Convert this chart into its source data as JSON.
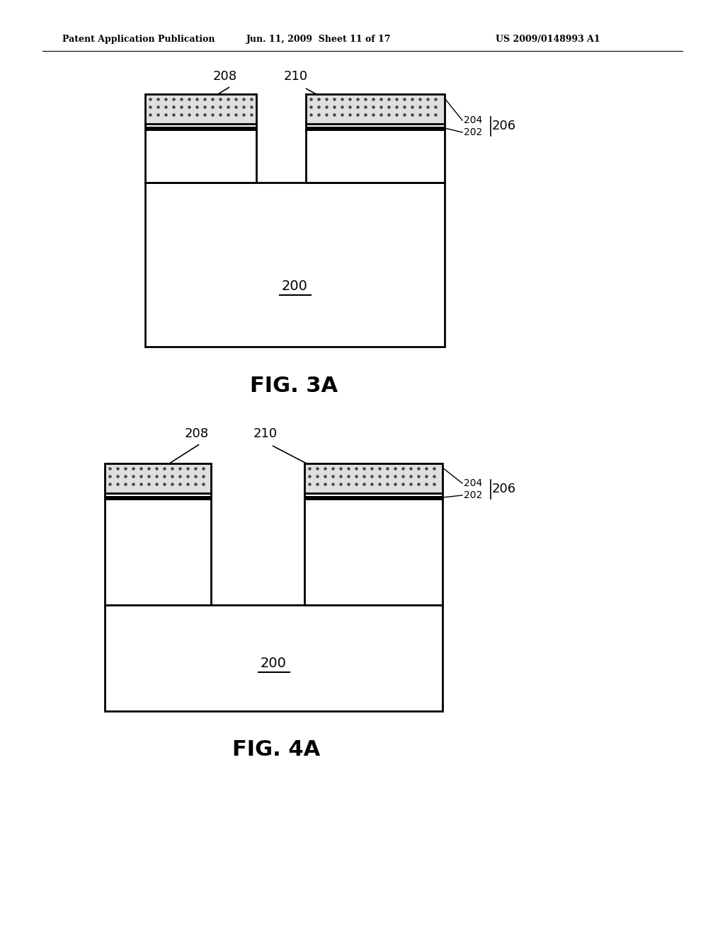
{
  "header_left": "Patent Application Publication",
  "header_mid": "Jun. 11, 2009  Sheet 11 of 17",
  "header_right": "US 2009/0148993 A1",
  "fig3a_label": "FIG. 3A",
  "fig4a_label": "FIG. 4A",
  "label_200": "200",
  "label_202": "202",
  "label_204": "204",
  "label_206": "206",
  "label_208": "208",
  "label_210": "210",
  "bg_color": "#ffffff",
  "line_color": "#000000",
  "dot_fill": "#e0e0e0"
}
